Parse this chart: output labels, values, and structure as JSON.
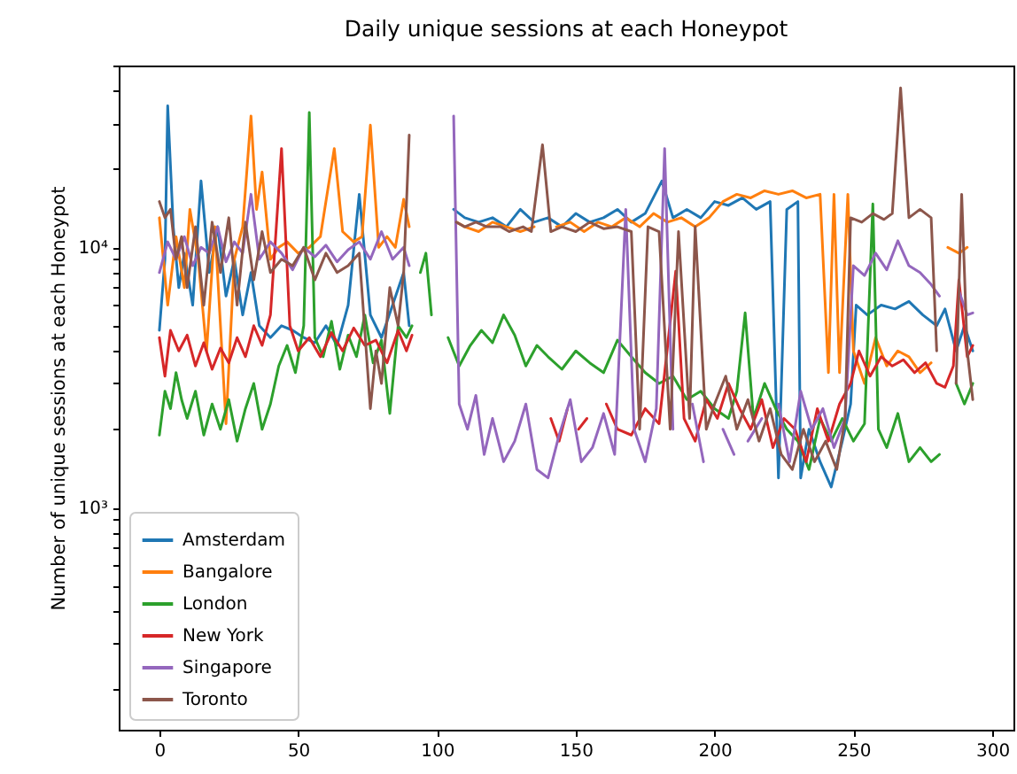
{
  "chart_data": {
    "type": "line",
    "title": "Daily unique sessions at each Honeypot",
    "ylabel": "Number of unique sessions at each Honeypot",
    "log": "y",
    "grid": false,
    "legend": "bottom left",
    "marker": "none",
    "line_style": "solid",
    "xlim": [
      -14.65,
      307.65
    ],
    "xticks": [
      0,
      50,
      100,
      150,
      200,
      250,
      300
    ],
    "ylim": [
      140,
      50000
    ],
    "yticks": [
      {
        "value": 200,
        "label": null
      },
      {
        "value": 300,
        "label": null
      },
      {
        "value": 400,
        "label": null
      },
      {
        "value": 500,
        "label": null
      },
      {
        "value": 600,
        "label": null
      },
      {
        "value": 700,
        "label": null
      },
      {
        "value": 800,
        "label": null
      },
      {
        "value": 900,
        "label": null
      },
      {
        "value": 1000,
        "label": "10³"
      },
      {
        "value": 2000,
        "label": null
      },
      {
        "value": 3000,
        "label": null
      },
      {
        "value": 4000,
        "label": null
      },
      {
        "value": 5000,
        "label": null
      },
      {
        "value": 6000,
        "label": null
      },
      {
        "value": 7000,
        "label": null
      },
      {
        "value": 8000,
        "label": null
      },
      {
        "value": 9000,
        "label": null
      },
      {
        "value": 10000,
        "label": "10⁴"
      },
      {
        "value": 20000,
        "label": null
      },
      {
        "value": 30000,
        "label": null
      },
      {
        "value": 40000,
        "label": null
      },
      {
        "value": 50000,
        "label": null
      }
    ],
    "series": [
      {
        "name": "Amsterdam",
        "color": "#1f77b4",
        "x": [
          0,
          2,
          3,
          5,
          7,
          9,
          12,
          15,
          18,
          21,
          24,
          27,
          30,
          33,
          36,
          40,
          44,
          48,
          52,
          56,
          60,
          64,
          68,
          72,
          76,
          80,
          84,
          88,
          90,
          92,
          106,
          110,
          115,
          120,
          125,
          130,
          135,
          140,
          145,
          150,
          155,
          160,
          165,
          170,
          175,
          181,
          185,
          190,
          195,
          200,
          205,
          210,
          215,
          220,
          223,
          226,
          230,
          231,
          234,
          238,
          242,
          246,
          249,
          251,
          255,
          260,
          265,
          270,
          275,
          280,
          283,
          287,
          290,
          293
        ],
        "values": [
          4800,
          9000,
          35000,
          12000,
          7000,
          9500,
          6000,
          18000,
          8000,
          12000,
          6500,
          9000,
          5500,
          8000,
          5000,
          4500,
          5000,
          4800,
          4500,
          4300,
          5000,
          4200,
          6000,
          16000,
          5500,
          4500,
          6000,
          8000,
          5000,
          null,
          14000,
          13000,
          12500,
          13000,
          12000,
          14000,
          12500,
          13000,
          12000,
          13500,
          12500,
          13000,
          14000,
          12500,
          13500,
          18000,
          13000,
          14000,
          13000,
          15000,
          14500,
          15500,
          14000,
          15000,
          1300,
          14000,
          15000,
          1300,
          2000,
          1500,
          1200,
          1800,
          2500,
          6000,
          5500,
          6000,
          5800,
          6200,
          5500,
          5000,
          5800,
          4000,
          5000,
          4000
        ]
      },
      {
        "name": "Bangalore",
        "color": "#ff7f0e",
        "x": [
          0,
          3,
          6,
          9,
          11,
          14,
          17,
          20,
          24,
          27,
          30,
          33,
          35,
          37,
          40,
          43,
          46,
          50,
          54,
          58,
          63,
          66,
          70,
          73,
          76,
          79,
          82,
          85,
          88,
          90,
          92,
          107,
          110,
          115,
          120,
          125,
          130,
          135,
          138,
          141,
          143,
          148,
          153,
          158,
          163,
          168,
          173,
          178,
          183,
          188,
          193,
          198,
          203,
          208,
          213,
          218,
          223,
          228,
          233,
          238,
          241,
          243,
          245,
          248,
          250,
          254,
          258,
          262,
          266,
          270,
          274,
          278,
          281,
          284,
          288,
          291
        ],
        "values": [
          13000,
          6000,
          11000,
          7000,
          14000,
          9000,
          4000,
          12000,
          2100,
          9000,
          12000,
          32000,
          14000,
          19500,
          9000,
          10000,
          10500,
          9500,
          10000,
          11000,
          24000,
          11500,
          10500,
          11000,
          29500,
          10000,
          11000,
          10000,
          15300,
          12000,
          null,
          12500,
          12000,
          11500,
          12500,
          12000,
          11500,
          12000,
          null,
          null,
          12000,
          12500,
          11500,
          12500,
          12000,
          13000,
          12000,
          13500,
          12500,
          13000,
          12000,
          13000,
          15000,
          16000,
          15500,
          16500,
          16000,
          16500,
          15500,
          16000,
          3300,
          16000,
          3300,
          16000,
          4000,
          3000,
          4500,
          3500,
          4000,
          3800,
          3300,
          3600,
          null,
          10000,
          9500,
          10000
        ]
      },
      {
        "name": "London",
        "color": "#2ca02c",
        "x": [
          0,
          2,
          4,
          6,
          8,
          10,
          13,
          16,
          19,
          22,
          25,
          28,
          31,
          34,
          37,
          40,
          43,
          46,
          49,
          52,
          54,
          56,
          59,
          62,
          65,
          68,
          71,
          74,
          77,
          80,
          83,
          86,
          89,
          91,
          92,
          94,
          96,
          98,
          99,
          104,
          108,
          112,
          116,
          120,
          124,
          128,
          132,
          136,
          140,
          145,
          150,
          155,
          160,
          165,
          170,
          175,
          180,
          185,
          190,
          195,
          200,
          205,
          208,
          211,
          214,
          218,
          222,
          226,
          230,
          234,
          238,
          242,
          246,
          250,
          254,
          257,
          259,
          262,
          266,
          270,
          274,
          278,
          281,
          283,
          287,
          290,
          293
        ],
        "values": [
          1900,
          2800,
          2400,
          3300,
          2600,
          2200,
          2800,
          1900,
          2500,
          2000,
          2600,
          1800,
          2400,
          3000,
          2000,
          2500,
          3500,
          4200,
          3300,
          5000,
          33000,
          4500,
          3800,
          5200,
          3400,
          4600,
          3800,
          5500,
          3600,
          4400,
          2300,
          5000,
          4500,
          5000,
          null,
          8000,
          9500,
          5500,
          null,
          4500,
          3500,
          4200,
          4800,
          4300,
          5500,
          4600,
          3500,
          4200,
          3800,
          3400,
          4000,
          3600,
          3300,
          4400,
          3800,
          3300,
          3000,
          3200,
          2600,
          2800,
          2400,
          2200,
          2800,
          5600,
          2200,
          3000,
          2400,
          2000,
          1800,
          1400,
          2200,
          1800,
          2200,
          1800,
          2100,
          14700,
          2000,
          1700,
          2300,
          1500,
          1700,
          1500,
          1600,
          null,
          3000,
          2500,
          3000
        ]
      },
      {
        "name": "New York",
        "color": "#d62728",
        "x": [
          0,
          2,
          4,
          7,
          10,
          13,
          16,
          19,
          22,
          25,
          28,
          31,
          34,
          37,
          40,
          44,
          47,
          50,
          54,
          58,
          62,
          66,
          70,
          74,
          78,
          82,
          86,
          89,
          91,
          93,
          141,
          144,
          147,
          149,
          151,
          154,
          158,
          161,
          165,
          170,
          175,
          180,
          186,
          189,
          193,
          197,
          201,
          205,
          209,
          213,
          217,
          221,
          225,
          229,
          233,
          237,
          241,
          245,
          249,
          252,
          256,
          260,
          264,
          268,
          272,
          276,
          280,
          283,
          286,
          288,
          291,
          293
        ],
        "values": [
          4500,
          3200,
          4800,
          4000,
          4600,
          3500,
          4300,
          3400,
          4100,
          3600,
          4500,
          3800,
          5000,
          4200,
          5500,
          24000,
          5000,
          4000,
          4500,
          3800,
          4700,
          4000,
          4900,
          4200,
          4400,
          3600,
          4800,
          4000,
          4600,
          null,
          2200,
          1800,
          2400,
          null,
          2000,
          2200,
          null,
          2500,
          2000,
          1900,
          2400,
          2100,
          8100,
          2200,
          1800,
          2600,
          2200,
          3000,
          2400,
          2000,
          2600,
          1700,
          2200,
          2000,
          1500,
          2400,
          1800,
          2500,
          3000,
          4000,
          3200,
          3800,
          3500,
          3700,
          3300,
          3600,
          3000,
          2900,
          3500,
          7500,
          3800,
          4200
        ]
      },
      {
        "name": "Singapore",
        "color": "#9467bd",
        "x": [
          0,
          3,
          6,
          9,
          12,
          15,
          18,
          21,
          24,
          27,
          30,
          33,
          36,
          40,
          44,
          48,
          52,
          56,
          60,
          64,
          68,
          72,
          76,
          80,
          84,
          88,
          90,
          92,
          106,
          108,
          111,
          114,
          117,
          120,
          124,
          128,
          132,
          136,
          140,
          144,
          148,
          152,
          156,
          160,
          164,
          168,
          171,
          175,
          179,
          182,
          185,
          189,
          192,
          196,
          200,
          203,
          207,
          210,
          212,
          217,
          220,
          223,
          227,
          231,
          235,
          239,
          243,
          247,
          250,
          254,
          258,
          262,
          266,
          270,
          274,
          278,
          281,
          285,
          288,
          291,
          293
        ],
        "values": [
          8000,
          10500,
          9000,
          11000,
          8500,
          10000,
          9500,
          12000,
          8800,
          10500,
          9500,
          16000,
          9000,
          10500,
          9500,
          8200,
          10000,
          9200,
          10200,
          8800,
          9800,
          10500,
          9000,
          11500,
          9000,
          10000,
          8500,
          null,
          32000,
          2500,
          2000,
          2700,
          1600,
          2200,
          1500,
          1800,
          2500,
          1400,
          1300,
          1900,
          2600,
          1500,
          1700,
          2300,
          1600,
          14000,
          2000,
          1500,
          2400,
          24000,
          2000,
          null,
          2500,
          1500,
          null,
          2000,
          1600,
          null,
          1800,
          2200,
          null,
          2500,
          1500,
          2800,
          2000,
          2400,
          1700,
          2200,
          8500,
          7800,
          9500,
          8200,
          10600,
          8500,
          8000,
          7200,
          6500,
          null,
          6800,
          5500,
          5600
        ]
      },
      {
        "name": "Toronto",
        "color": "#8c564b",
        "x": [
          0,
          2,
          4,
          6,
          8,
          10,
          13,
          16,
          19,
          22,
          25,
          28,
          31,
          34,
          37,
          40,
          44,
          48,
          52,
          56,
          60,
          64,
          68,
          72,
          76,
          78,
          80,
          83,
          86,
          88,
          90,
          91,
          107,
          110,
          114,
          118,
          123,
          126,
          131,
          134,
          138,
          141,
          145,
          150,
          155,
          160,
          165,
          170,
          173,
          176,
          180,
          184,
          187,
          191,
          193,
          197,
          200,
          204,
          208,
          212,
          216,
          220,
          224,
          228,
          232,
          236,
          240,
          244,
          247,
          249,
          253,
          257,
          261,
          264,
          267,
          270,
          274,
          278,
          280,
          282,
          285,
          287,
          289,
          291,
          293
        ],
        "values": [
          15000,
          13000,
          14000,
          9000,
          11000,
          7000,
          12000,
          6000,
          12500,
          8000,
          13000,
          6000,
          12500,
          7500,
          11500,
          8000,
          9000,
          8500,
          10000,
          7500,
          9500,
          8000,
          8500,
          9500,
          2400,
          4000,
          3000,
          7000,
          5000,
          8000,
          27000,
          null,
          12500,
          12000,
          12500,
          12000,
          12000,
          11500,
          12000,
          11500,
          24800,
          11500,
          12000,
          11500,
          12500,
          11800,
          12000,
          11500,
          2000,
          12000,
          11500,
          2000,
          11500,
          2200,
          12000,
          2000,
          2500,
          3200,
          2000,
          2600,
          1800,
          2400,
          1600,
          1400,
          2000,
          1500,
          1800,
          1400,
          2200,
          13000,
          12500,
          13500,
          12800,
          13500,
          41000,
          13000,
          14000,
          13000,
          4000,
          null,
          null,
          3000,
          16000,
          4000,
          2600
        ]
      }
    ]
  }
}
